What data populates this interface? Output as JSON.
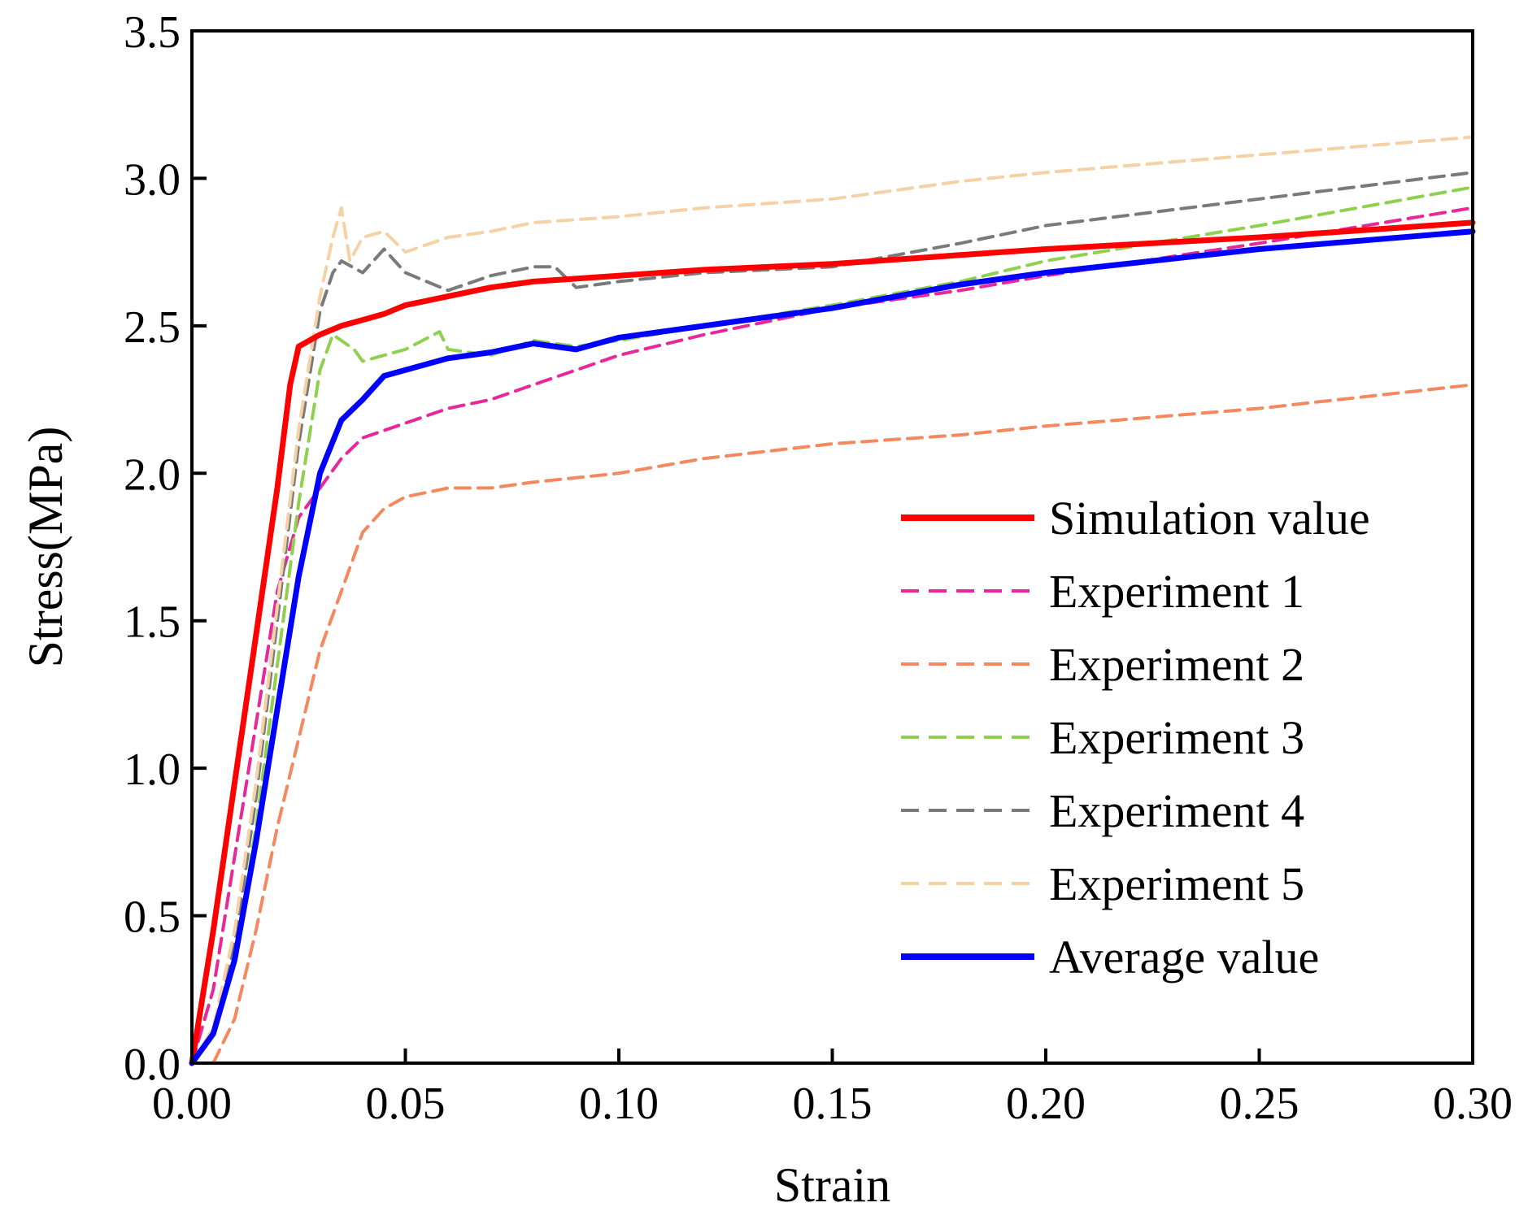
{
  "chart_data": {
    "type": "line",
    "title": "",
    "xlabel": "Strain",
    "ylabel": "Stress(MPa)",
    "xlim": [
      0,
      0.3
    ],
    "ylim": [
      0,
      3.5
    ],
    "xticks": [
      "0.00",
      "0.05",
      "0.10",
      "0.15",
      "0.20",
      "0.25",
      "0.30"
    ],
    "yticks": [
      "0.0",
      "0.5",
      "1.0",
      "1.5",
      "2.0",
      "2.5",
      "3.0",
      "3.5"
    ],
    "legend_position": "lower-right",
    "series": [
      {
        "name": "Simulation value",
        "color": "#ff0000",
        "style": "solid",
        "x": [
          0,
          0.005,
          0.01,
          0.015,
          0.02,
          0.023,
          0.025,
          0.03,
          0.035,
          0.04,
          0.045,
          0.05,
          0.06,
          0.07,
          0.08,
          0.1,
          0.12,
          0.15,
          0.18,
          0.2,
          0.25,
          0.3
        ],
        "y": [
          0,
          0.45,
          0.95,
          1.45,
          1.95,
          2.3,
          2.43,
          2.47,
          2.5,
          2.52,
          2.54,
          2.57,
          2.6,
          2.63,
          2.65,
          2.67,
          2.69,
          2.71,
          2.74,
          2.76,
          2.8,
          2.85
        ]
      },
      {
        "name": "Experiment 1",
        "color": "#e8279b",
        "style": "dashed",
        "x": [
          0,
          0.005,
          0.01,
          0.015,
          0.02,
          0.025,
          0.03,
          0.035,
          0.04,
          0.05,
          0.06,
          0.07,
          0.08,
          0.1,
          0.12,
          0.15,
          0.18,
          0.2,
          0.25,
          0.3
        ],
        "y": [
          0,
          0.25,
          0.7,
          1.15,
          1.6,
          1.85,
          1.95,
          2.05,
          2.12,
          2.17,
          2.22,
          2.25,
          2.3,
          2.4,
          2.47,
          2.56,
          2.62,
          2.67,
          2.78,
          2.9
        ]
      },
      {
        "name": "Experiment 2",
        "color": "#f4895f",
        "style": "dashed",
        "x": [
          0.005,
          0.01,
          0.015,
          0.02,
          0.025,
          0.03,
          0.035,
          0.04,
          0.045,
          0.05,
          0.06,
          0.07,
          0.08,
          0.1,
          0.12,
          0.15,
          0.18,
          0.2,
          0.25,
          0.3
        ],
        "y": [
          0,
          0.15,
          0.45,
          0.8,
          1.1,
          1.4,
          1.6,
          1.8,
          1.88,
          1.92,
          1.95,
          1.95,
          1.97,
          2.0,
          2.05,
          2.1,
          2.13,
          2.16,
          2.22,
          2.3
        ]
      },
      {
        "name": "Experiment 3",
        "color": "#8fd14f",
        "style": "dashed",
        "x": [
          0,
          0.005,
          0.01,
          0.015,
          0.02,
          0.025,
          0.03,
          0.033,
          0.035,
          0.038,
          0.04,
          0.05,
          0.058,
          0.06,
          0.07,
          0.08,
          0.09,
          0.1,
          0.12,
          0.15,
          0.18,
          0.2,
          0.25,
          0.3
        ],
        "y": [
          0,
          0.1,
          0.35,
          0.8,
          1.35,
          1.9,
          2.35,
          2.47,
          2.45,
          2.42,
          2.38,
          2.42,
          2.48,
          2.42,
          2.4,
          2.45,
          2.43,
          2.45,
          2.5,
          2.57,
          2.65,
          2.72,
          2.84,
          2.97
        ]
      },
      {
        "name": "Experiment 4",
        "color": "#7a7a7a",
        "style": "dashed",
        "x": [
          0,
          0.005,
          0.01,
          0.015,
          0.02,
          0.025,
          0.03,
          0.033,
          0.035,
          0.04,
          0.045,
          0.05,
          0.06,
          0.07,
          0.08,
          0.085,
          0.09,
          0.1,
          0.12,
          0.15,
          0.18,
          0.2,
          0.25,
          0.3
        ],
        "y": [
          0,
          0.1,
          0.4,
          0.9,
          1.5,
          2.1,
          2.55,
          2.68,
          2.72,
          2.68,
          2.76,
          2.68,
          2.62,
          2.67,
          2.7,
          2.7,
          2.63,
          2.65,
          2.68,
          2.7,
          2.78,
          2.84,
          2.93,
          3.02
        ]
      },
      {
        "name": "Experiment 5",
        "color": "#f5d2a6",
        "style": "dashed",
        "x": [
          0,
          0.005,
          0.01,
          0.015,
          0.02,
          0.025,
          0.03,
          0.033,
          0.035,
          0.037,
          0.04,
          0.045,
          0.05,
          0.06,
          0.07,
          0.08,
          0.1,
          0.12,
          0.15,
          0.18,
          0.2,
          0.25,
          0.3
        ],
        "y": [
          0,
          0.12,
          0.45,
          0.95,
          1.55,
          2.15,
          2.6,
          2.8,
          2.9,
          2.72,
          2.8,
          2.82,
          2.75,
          2.8,
          2.82,
          2.85,
          2.87,
          2.9,
          2.93,
          2.99,
          3.02,
          3.08,
          3.14
        ]
      },
      {
        "name": "Average value",
        "color": "#0000ff",
        "style": "solid",
        "x": [
          0,
          0.005,
          0.01,
          0.015,
          0.02,
          0.025,
          0.03,
          0.035,
          0.04,
          0.045,
          0.05,
          0.06,
          0.07,
          0.08,
          0.09,
          0.1,
          0.12,
          0.15,
          0.18,
          0.2,
          0.25,
          0.3
        ],
        "y": [
          0,
          0.1,
          0.35,
          0.75,
          1.2,
          1.65,
          2.0,
          2.18,
          2.25,
          2.33,
          2.35,
          2.39,
          2.41,
          2.44,
          2.42,
          2.46,
          2.5,
          2.56,
          2.64,
          2.68,
          2.76,
          2.82
        ]
      }
    ]
  }
}
